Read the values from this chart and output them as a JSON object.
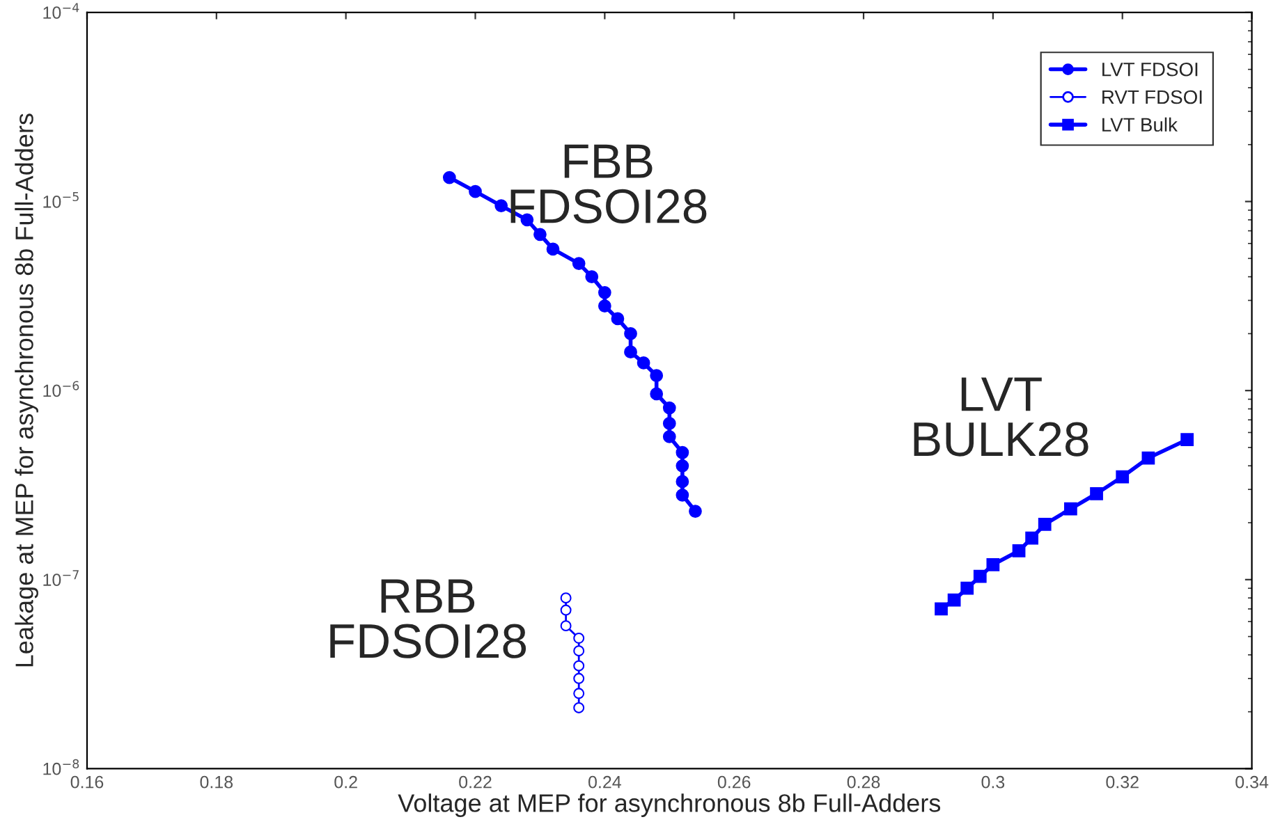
{
  "chart_data": {
    "type": "line",
    "xlabel": "Voltage at MEP for asynchronous 8b Full-Adders",
    "ylabel": "Leakage at MEP for asynchronous 8b Full-Adders",
    "log": "y",
    "xlim": [
      0.16,
      0.34
    ],
    "xticks": [
      0.16,
      0.18,
      {
        "value": 0.2,
        "label": "0.2"
      },
      0.22,
      0.24,
      0.26,
      0.28,
      {
        "value": 0.3,
        "label": "0.3"
      },
      0.32,
      0.34
    ],
    "ylim": [
      1e-08,
      0.0001
    ],
    "yticks": [
      {
        "value": 1e-08,
        "label": "10$^{−8}$"
      },
      {
        "value": 1e-07,
        "label": "10$^{−7}$"
      },
      {
        "value": 1e-06,
        "label": "10$^{−6}$"
      },
      {
        "value": 1e-05,
        "label": "10$^{−5}$"
      },
      {
        "value": 0.0001,
        "label": "10$^{−4}$"
      }
    ],
    "grid": false,
    "legend": "top right",
    "line_style": "solid",
    "series": [
      {
        "name": "LVT FDSOI",
        "color": "#0000ff",
        "marker": "circle",
        "x": [
          0.216,
          0.22,
          0.224,
          0.228,
          0.23,
          0.232,
          0.236,
          0.238,
          0.24,
          0.24,
          0.242,
          0.244,
          0.244,
          0.246,
          0.248,
          0.248,
          0.25,
          0.25,
          0.25,
          0.252,
          0.252,
          0.252,
          0.252,
          0.254
        ],
        "values": [
          1.34e-05,
          1.13e-05,
          9.5e-06,
          8e-06,
          6.7e-06,
          5.6e-06,
          4.7e-06,
          4e-06,
          3.3e-06,
          2.8e-06,
          2.4e-06,
          2e-06,
          1.6e-06,
          1.4e-06,
          1.2e-06,
          9.6e-07,
          8.1e-07,
          6.7e-07,
          5.7e-07,
          4.7e-07,
          4e-07,
          3.3e-07,
          2.8e-07,
          2.3e-07
        ]
      },
      {
        "name": "RVT FDSOI",
        "color": "#0000ff",
        "marker": "open circle",
        "x": [
          0.234,
          0.234,
          0.234,
          0.236,
          0.236,
          0.236,
          0.236,
          0.236,
          0.236
        ],
        "values": [
          8e-08,
          6.9e-08,
          5.7e-08,
          4.9e-08,
          4.2e-08,
          3.5e-08,
          3e-08,
          2.5e-08,
          2.1e-08
        ]
      },
      {
        "name": "LVT Bulk",
        "color": "#0000ff",
        "marker": "square",
        "x": [
          0.292,
          0.294,
          0.296,
          0.298,
          0.3,
          0.304,
          0.306,
          0.308,
          0.312,
          0.316,
          0.32,
          0.324,
          0.33
        ],
        "values": [
          7e-08,
          7.8e-08,
          9e-08,
          1.04e-07,
          1.2e-07,
          1.42e-07,
          1.66e-07,
          1.96e-07,
          2.37e-07,
          2.85e-07,
          3.5e-07,
          4.4e-07,
          5.5e-07
        ]
      }
    ],
    "annotations": [
      "FBB\nFDSOI28",
      "LVT\nBULK28",
      "RBB\nFDSOI28"
    ]
  }
}
